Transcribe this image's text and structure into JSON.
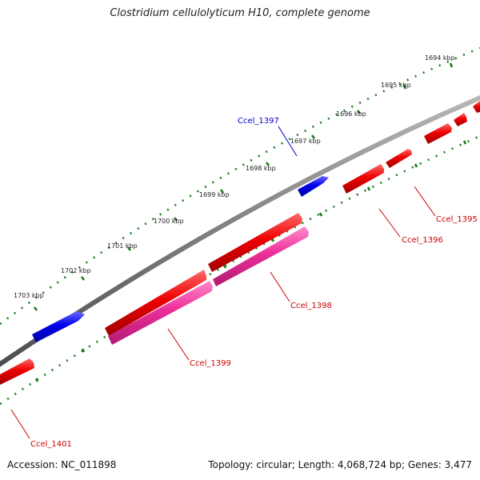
{
  "title": "Clostridium cellulolyticum H10, complete genome",
  "footer": {
    "accession": "Accession: NC_011898",
    "summary": "Topology: circular; Length: 4,068,724 bp; Genes: 3,477"
  },
  "colors": {
    "backbone": "#7f7f7f",
    "forward_gene": "#0000ee",
    "reverse_gene": "#ee0000",
    "rna_gene": "#ee2e9a",
    "tick": "#1a7a1a",
    "forward_label": "#0000cc",
    "reverse_label": "#cc0000"
  },
  "kbp_ticks": [
    "1694 kbp",
    "1695 kbp",
    "1696 kbp",
    "1697 kbp",
    "1698 kbp",
    "1699 kbp",
    "1700 kbp",
    "1701 kbp",
    "1702 kbp",
    "1703 kbp"
  ],
  "gene_labels": {
    "Ccel_1397": "Ccel_1397",
    "Ccel_1395": "Ccel_1395",
    "Ccel_1396": "Ccel_1396",
    "Ccel_1398": "Ccel_1398",
    "Ccel_1399": "Ccel_1399",
    "Ccel_1401": "Ccel_1401"
  }
}
